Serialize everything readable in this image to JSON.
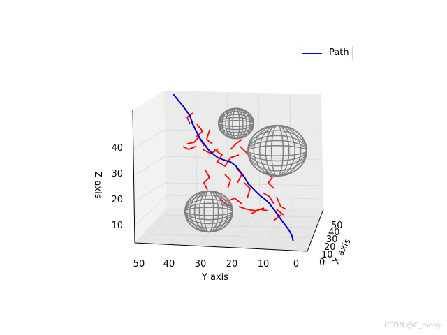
{
  "chart_data": {
    "type": "3d-line-rrt",
    "x_axis": {
      "label": "X axis",
      "ticks": [
        "0",
        "10",
        "20",
        "30",
        "40",
        "50"
      ]
    },
    "y_axis": {
      "label": "Y axis",
      "ticks": [
        "50",
        "40",
        "30",
        "20",
        "10",
        "0"
      ]
    },
    "z_axis": {
      "label": "Z axis",
      "ticks": [
        "10",
        "20",
        "30",
        "40"
      ]
    },
    "legend": {
      "position": "top-right",
      "entries": [
        {
          "name": "Path",
          "color": "#0000cc"
        }
      ]
    },
    "colors": {
      "path": "#0000cc",
      "tree": "#ff0000",
      "obstacles": "#808080",
      "pane": "#f2f2f2",
      "grid": "#d9d9d9"
    },
    "obstacles": [
      {
        "shape": "sphere",
        "wireframe": true
      },
      {
        "shape": "sphere",
        "wireframe": true
      },
      {
        "shape": "sphere",
        "wireframe": true
      }
    ],
    "series": [
      {
        "name": "Path",
        "color": "#0000cc"
      }
    ]
  },
  "watermark": "CSDN @C_mony"
}
